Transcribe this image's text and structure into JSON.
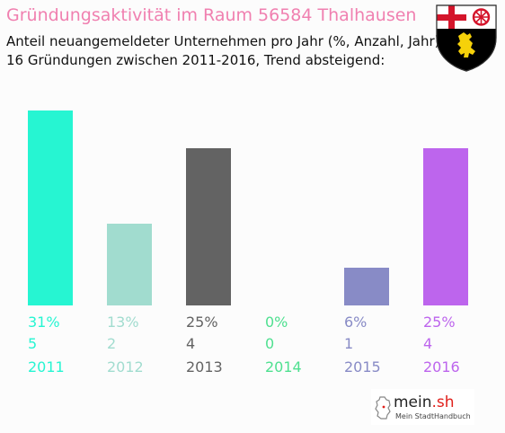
{
  "header": {
    "title": "Gründungsaktivität im Raum 56584 Thalhausen",
    "subtitle_line1": "Anteil neuangemeldeter Unternehmen pro Jahr (%, Anzahl, Jahr)",
    "subtitle_line2": "16 Gründungen zwischen 2011-2016, Trend absteigend:"
  },
  "crest": {
    "icon": "rhineland-palatinate-coat-of-arms-icon",
    "colors": {
      "cross": "#d4152b",
      "wheel": "#d4152b",
      "lion_field": "#000000",
      "lion": "#f6d10a"
    }
  },
  "logo": {
    "name": "mein",
    "tld": ".sh",
    "tagline": "Mein StadtHandbuch",
    "icon": "germany-map-icon"
  },
  "chart_data": {
    "type": "bar",
    "categories": [
      "2011",
      "2012",
      "2013",
      "2014",
      "2015",
      "2016"
    ],
    "values": [
      31,
      13,
      25,
      0,
      6,
      25
    ],
    "counts": [
      5,
      2,
      4,
      0,
      1,
      4
    ],
    "percent_labels": [
      "31%",
      "13%",
      "25%",
      "0%",
      "6%",
      "25%"
    ],
    "count_labels": [
      "5",
      "2",
      "4",
      "0",
      "1",
      "4"
    ],
    "colors": [
      "#26f5d2",
      "#a1dccf",
      "#636363",
      "#4fe090",
      "#888bc6",
      "#bd65ed"
    ],
    "ylim": [
      0,
      31
    ],
    "grid": false,
    "legend": "none"
  }
}
